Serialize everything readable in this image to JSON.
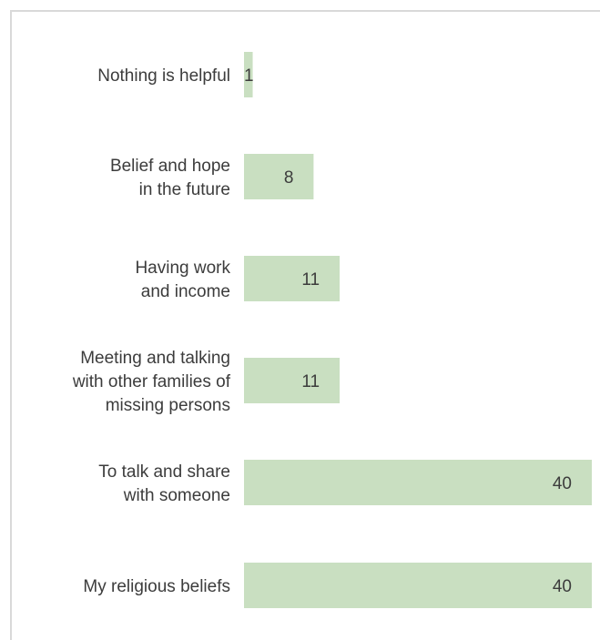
{
  "chart_data": {
    "type": "bar",
    "orientation": "horizontal",
    "title": "",
    "xlabel": "",
    "ylabel": "",
    "categories": [
      [
        "Nothing is helpful"
      ],
      [
        "Belief and hope",
        "in the future"
      ],
      [
        "Having work",
        "and income"
      ],
      [
        "Meeting and talking",
        "with other families of",
        "missing persons"
      ],
      [
        "To talk and share",
        "with someone"
      ],
      [
        "My religious beliefs"
      ]
    ],
    "values": [
      1,
      8,
      11,
      11,
      40,
      40
    ],
    "xlim": [
      0,
      40
    ],
    "grid": false,
    "legend": "none",
    "colors": {
      "bar": "#c9dfc1",
      "text": "#3c3c3c",
      "frame": "#d9d9d9"
    }
  }
}
